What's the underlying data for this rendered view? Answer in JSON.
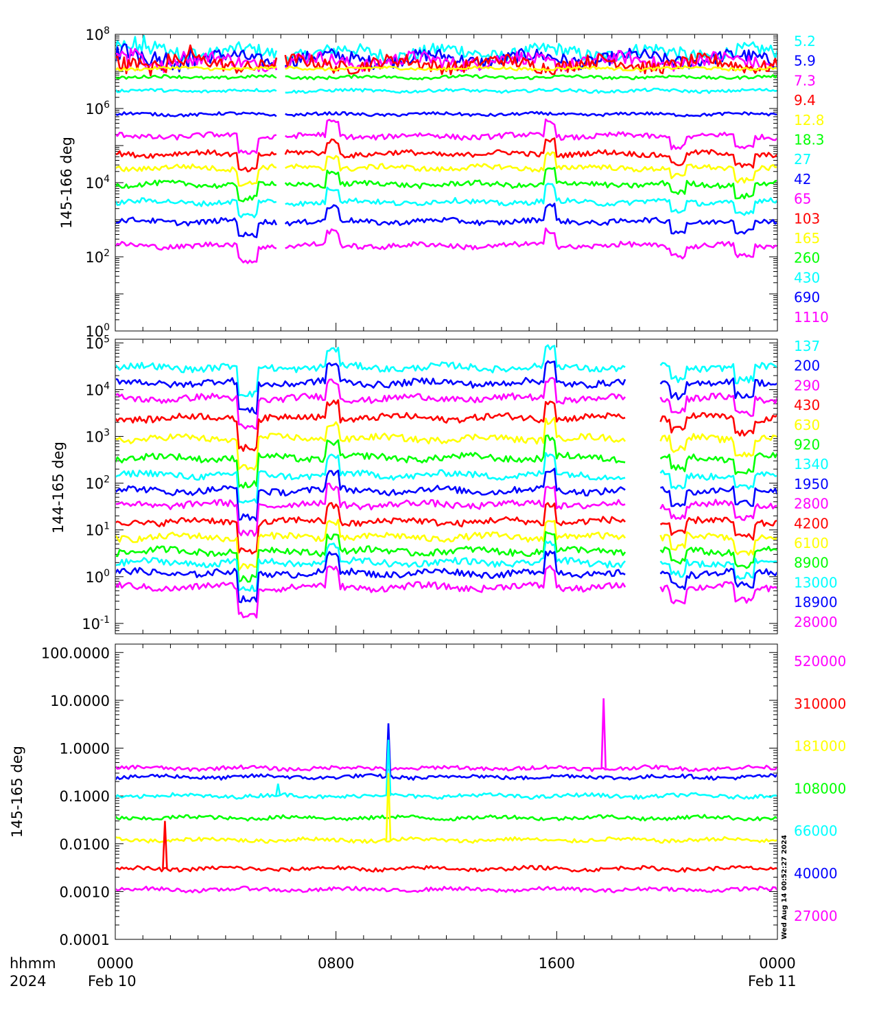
{
  "colors": {
    "cyan": "#00ffff",
    "blue": "#0000ff",
    "magenta": "#ff00ff",
    "red": "#ff0000",
    "yellow": "#ffff00",
    "green": "#00ff00"
  },
  "footer": {
    "time_label": "hhmm",
    "year_label": "2024",
    "start_date": "Feb 10",
    "end_date": "Feb 11",
    "stamp": "Wed Aug 14 00:52:27 2024"
  },
  "chart_data": [
    {
      "type": "line",
      "ylabel": "145-166 deg",
      "yscale": "log",
      "ylim": [
        1,
        100000000
      ],
      "yticks": [
        {
          "value": 1,
          "base": "10",
          "exp": "0"
        },
        {
          "value": 100,
          "base": "10",
          "exp": "2"
        },
        {
          "value": 10000,
          "base": "10",
          "exp": "4"
        },
        {
          "value": 1000000,
          "base": "10",
          "exp": "6"
        },
        {
          "value": 100000000,
          "base": "10",
          "exp": "8"
        }
      ],
      "xlim": [
        0,
        24
      ],
      "xticks": [
        "0000",
        "0800",
        "1600",
        "0000"
      ],
      "series": [
        {
          "name": "5.2",
          "color": "#00ffff",
          "level": 32000000,
          "style": "noisy-top"
        },
        {
          "name": "5.9",
          "color": "#0000ff",
          "level": 22000000,
          "style": "noisy-top"
        },
        {
          "name": "7.3",
          "color": "#ff00ff",
          "level": 19000000,
          "style": "noisy-top"
        },
        {
          "name": "9.4",
          "color": "#ff0000",
          "level": 16000000,
          "style": "noisy-top"
        },
        {
          "name": "12.8",
          "color": "#ffff00",
          "level": 12000000,
          "style": "flat"
        },
        {
          "name": "18.3",
          "color": "#00ff00",
          "level": 7000000,
          "style": "flat"
        },
        {
          "name": "27",
          "color": "#00ffff",
          "level": 3000000,
          "style": "flat"
        },
        {
          "name": "42",
          "color": "#0000ff",
          "level": 700000,
          "style": "flat"
        },
        {
          "name": "65",
          "color": "#ff00ff",
          "level": 180000,
          "style": "events"
        },
        {
          "name": "103",
          "color": "#ff0000",
          "level": 60000,
          "style": "events"
        },
        {
          "name": "165",
          "color": "#ffff00",
          "level": 25000,
          "style": "events"
        },
        {
          "name": "260",
          "color": "#00ff00",
          "level": 9000,
          "style": "events"
        },
        {
          "name": "430",
          "color": "#00ffff",
          "level": 3000,
          "style": "events"
        },
        {
          "name": "690",
          "color": "#0000ff",
          "level": 900,
          "style": "events"
        },
        {
          "name": "1110",
          "color": "#ff00ff",
          "level": 200,
          "style": "events"
        }
      ]
    },
    {
      "type": "line",
      "ylabel": "144-165 deg",
      "yscale": "log",
      "ylim": [
        0.06,
        120000
      ],
      "yticks": [
        {
          "value": 0.1,
          "base": "10",
          "exp": "-1"
        },
        {
          "value": 1,
          "base": "10",
          "exp": "0"
        },
        {
          "value": 10,
          "base": "10",
          "exp": "1"
        },
        {
          "value": 100,
          "base": "10",
          "exp": "2"
        },
        {
          "value": 1000,
          "base": "10",
          "exp": "3"
        },
        {
          "value": 10000,
          "base": "10",
          "exp": "4"
        },
        {
          "value": 100000,
          "base": "10",
          "exp": "5"
        }
      ],
      "xlim": [
        0,
        24
      ],
      "xticks": [
        "0000",
        "0800",
        "1600",
        "0000"
      ],
      "series": [
        {
          "name": "137",
          "color": "#00ffff",
          "level": 30000,
          "style": "events"
        },
        {
          "name": "200",
          "color": "#0000ff",
          "level": 14000,
          "style": "events"
        },
        {
          "name": "290",
          "color": "#ff00ff",
          "level": 6500,
          "style": "events"
        },
        {
          "name": "430",
          "color": "#ff0000",
          "level": 2500,
          "style": "events"
        },
        {
          "name": "630",
          "color": "#ffff00",
          "level": 900,
          "style": "events"
        },
        {
          "name": "920",
          "color": "#00ff00",
          "level": 350,
          "style": "events"
        },
        {
          "name": "1340",
          "color": "#00ffff",
          "level": 150,
          "style": "events"
        },
        {
          "name": "1950",
          "color": "#0000ff",
          "level": 70,
          "style": "events"
        },
        {
          "name": "2800",
          "color": "#ff00ff",
          "level": 35,
          "style": "events"
        },
        {
          "name": "4200",
          "color": "#ff0000",
          "level": 15,
          "style": "events"
        },
        {
          "name": "6100",
          "color": "#ffff00",
          "level": 7,
          "style": "events"
        },
        {
          "name": "8900",
          "color": "#00ff00",
          "level": 3.5,
          "style": "events"
        },
        {
          "name": "13000",
          "color": "#00ffff",
          "level": 2,
          "style": "events"
        },
        {
          "name": "18900",
          "color": "#0000ff",
          "level": 1.2,
          "style": "events"
        },
        {
          "name": "28000",
          "color": "#ff00ff",
          "level": 0.6,
          "style": "events"
        }
      ]
    },
    {
      "type": "line",
      "ylabel": "145-165 deg",
      "yscale": "log",
      "ylim": [
        0.0001,
        150
      ],
      "yticks": [
        {
          "value": 0.0001,
          "text": "0.0001"
        },
        {
          "value": 0.001,
          "text": "0.0010"
        },
        {
          "value": 0.01,
          "text": "0.0100"
        },
        {
          "value": 0.1,
          "text": "0.1000"
        },
        {
          "value": 1,
          "text": "1.0000"
        },
        {
          "value": 10,
          "text": "10.0000"
        },
        {
          "value": 100,
          "text": "100.0000"
        }
      ],
      "xlim": [
        0,
        24
      ],
      "xticks": [
        "0000",
        "0800",
        "1600",
        "0000"
      ],
      "series": [
        {
          "name": "520000",
          "color": "#ff00ff",
          "level": 0.38,
          "style": "flat"
        },
        {
          "name": "310000",
          "color": "#ff0000",
          "level": 0.003,
          "style": "flat"
        },
        {
          "name": "181000",
          "color": "#ffff00",
          "level": 0.012,
          "style": "flat"
        },
        {
          "name": "108000",
          "color": "#00ff00",
          "level": 0.035,
          "style": "flat"
        },
        {
          "name": "66000",
          "color": "#00ffff",
          "level": 0.1,
          "style": "flat"
        },
        {
          "name": "40000",
          "color": "#0000ff",
          "level": 0.25,
          "style": "flat"
        },
        {
          "name": "27000",
          "color": "#ff00ff",
          "level": 0.0011,
          "style": "flat"
        }
      ]
    }
  ]
}
